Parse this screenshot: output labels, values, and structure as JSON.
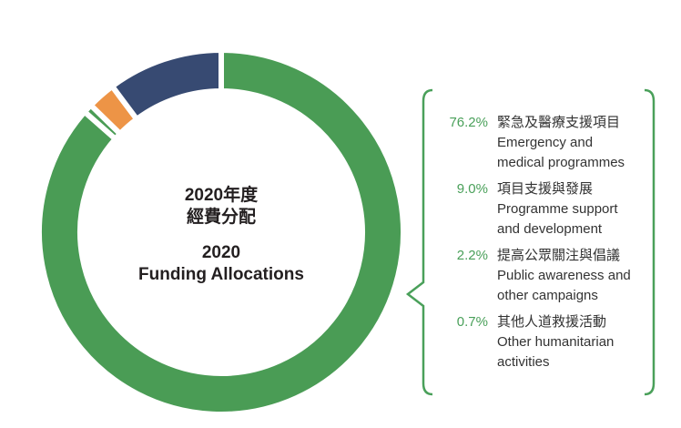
{
  "chart_data": {
    "type": "pie",
    "donut": true,
    "title": "2020年度 經費分配",
    "title_zh": [
      "2020年度",
      "經費分配"
    ],
    "title_en": [
      "2020",
      "Funding Allocations"
    ],
    "slices": [
      {
        "value": 76.2,
        "label": "76.2%",
        "zh": "緊急及醫療支援項目",
        "en": [
          "Emergency and",
          "medical programmes"
        ],
        "color": "#4a9c55"
      },
      {
        "value": 9.0,
        "label": "9.0%",
        "zh": "項目支援與發展",
        "en": [
          "Programme support",
          "and development"
        ],
        "color": "#374a72"
      },
      {
        "value": 2.2,
        "label": "2.2%",
        "zh": "提高公眾關注與倡議",
        "en": [
          "Public awareness and",
          "other campaigns"
        ],
        "color": "#ed9446"
      },
      {
        "value": 0.7,
        "label": "0.7%",
        "zh": "其他人道救援活動",
        "en": [
          "Other humanitarian",
          "activities"
        ],
        "color": "#4a9c55"
      }
    ],
    "draw_order": [
      0,
      3,
      2,
      1
    ],
    "legend_placement": "right",
    "accent": "#4aa05a"
  }
}
